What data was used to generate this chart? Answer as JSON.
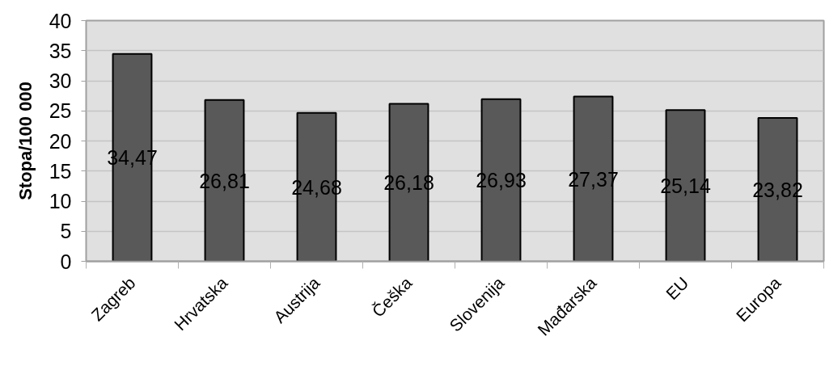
{
  "chart_data": {
    "type": "bar",
    "ylabel": "Stopa/100 000",
    "categories": [
      "Zagreb",
      "Hrvatska",
      "Austrija",
      "Češka",
      "Slovenija",
      "Mađarska",
      "EU",
      "Europa"
    ],
    "values": [
      34.47,
      26.81,
      24.68,
      26.18,
      26.93,
      27.37,
      25.14,
      23.82
    ],
    "value_labels": [
      "34,47",
      "26,81",
      "24,68",
      "26,18",
      "26,93",
      "27,37",
      "25,14",
      "23,82"
    ],
    "color": "#595959",
    "ylim": [
      0,
      40
    ],
    "yticks": [
      0,
      5,
      10,
      15,
      20,
      25,
      30,
      35,
      40
    ],
    "grid": "y"
  }
}
